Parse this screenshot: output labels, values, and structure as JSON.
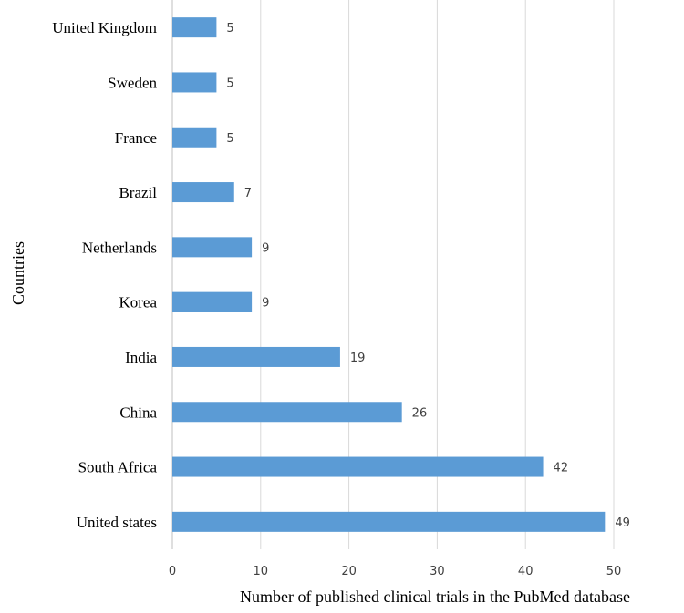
{
  "chart_data": {
    "type": "bar",
    "orientation": "horizontal",
    "categories": [
      "United states",
      "South Africa",
      "China",
      "India",
      "Korea",
      "Netherlands",
      "Brazil",
      "France",
      "Sweden",
      "United Kingdom"
    ],
    "values": [
      49,
      42,
      26,
      19,
      9,
      9,
      7,
      5,
      5,
      5
    ],
    "data_labels": [
      "49",
      "42",
      "26",
      "19",
      "9",
      "9",
      "7",
      "5",
      "5",
      "5"
    ],
    "xlabel": "Number of published clinical trials in the PubMed database",
    "ylabel": "Countries",
    "xlim": [
      0,
      50
    ],
    "x_ticks": [
      0,
      10,
      20,
      30,
      40,
      50
    ],
    "x_tick_labels": [
      "0",
      "10",
      "20",
      "30",
      "40",
      "50"
    ],
    "grid": "vertical",
    "legend": "none",
    "colors": {
      "bar": "#5b9bd5",
      "grid": "#d9d9d9",
      "axis": "#bfbfbf"
    }
  }
}
